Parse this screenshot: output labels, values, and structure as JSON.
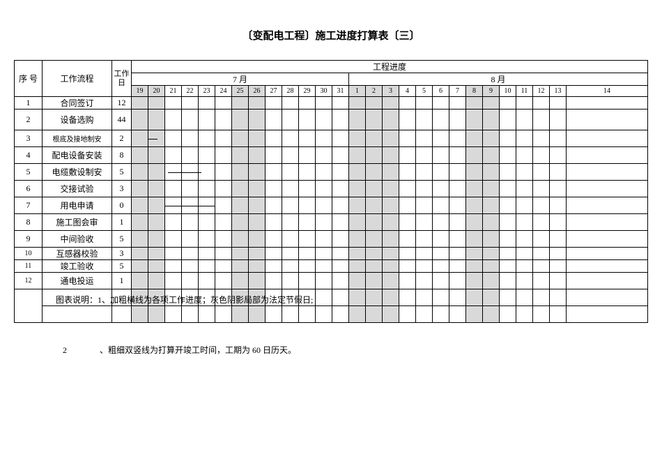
{
  "title": "〔变配电工程〕施工进度打算表〔三〕",
  "headers": {
    "seq": "序 号",
    "workflow": "工作流程",
    "workday": "工作日",
    "progress": "工程进度",
    "month7": "7 月",
    "month8": "8 月"
  },
  "days": [
    "19",
    "20",
    "21",
    "22",
    "23",
    "24",
    "25",
    "26",
    "27",
    "28",
    "29",
    "30",
    "31",
    "1",
    "2",
    "3",
    "4",
    "5",
    "6",
    "7",
    "8",
    "9",
    "10",
    "11",
    "12",
    "13",
    "14"
  ],
  "shaded_cols": [
    0,
    1,
    6,
    7,
    13,
    14,
    15,
    20,
    21
  ],
  "rows": [
    {
      "num": "1",
      "task": "合同签订",
      "days": "12",
      "size": "short",
      "task_size": ""
    },
    {
      "num": "2",
      "task": "设备选购",
      "days": "44",
      "size": "tall",
      "task_size": ""
    },
    {
      "num": "3",
      "task": "根底及接地制安",
      "days": "2",
      "size": "med",
      "task_size": "small-text"
    },
    {
      "num": "4",
      "task": "配电设备安装",
      "days": "8",
      "size": "med",
      "task_size": ""
    },
    {
      "num": "5",
      "task": "电缆敷设制安",
      "days": "5",
      "size": "med",
      "task_size": ""
    },
    {
      "num": "6",
      "task": "交接试验",
      "days": "3",
      "size": "med",
      "task_size": ""
    },
    {
      "num": "7",
      "task": "用电申请",
      "days": "0",
      "size": "med",
      "task_size": ""
    },
    {
      "num": "8",
      "task": "施工图会审",
      "days": "1",
      "size": "med",
      "task_size": ""
    },
    {
      "num": "9",
      "task": "中间验收",
      "days": "5",
      "size": "med",
      "task_size": ""
    },
    {
      "num": "10",
      "task": "互感器校验",
      "days": "3",
      "size": "short",
      "task_size": "",
      "num_size": "small-text"
    },
    {
      "num": "11",
      "task": "竣工验收",
      "days": "5",
      "size": "short",
      "task_size": "",
      "num_size": "small-text"
    },
    {
      "num": "12",
      "task": "通电投运",
      "days": "1",
      "size": "med",
      "task_size": "",
      "num_size": "small-text"
    }
  ],
  "note1": "图表说明：1、加粗横线为各项工作进度；灰色阴影局部为法定节假日;",
  "note2_num": "2",
  "note2_text": "、粗细双竖线为打算开竣工时间，工期为  60  日历天。",
  "colors": {
    "shade": "#d9d9d9",
    "border": "#000000",
    "bg": "#ffffff"
  },
  "progress_bars": [
    {
      "row": 3,
      "left_cols": 1,
      "width_cols": 0.6
    },
    {
      "row": 5,
      "left_cols": 2.2,
      "width_cols": 2
    },
    {
      "row": 7,
      "left_cols": 2,
      "width_cols": 3
    }
  ]
}
